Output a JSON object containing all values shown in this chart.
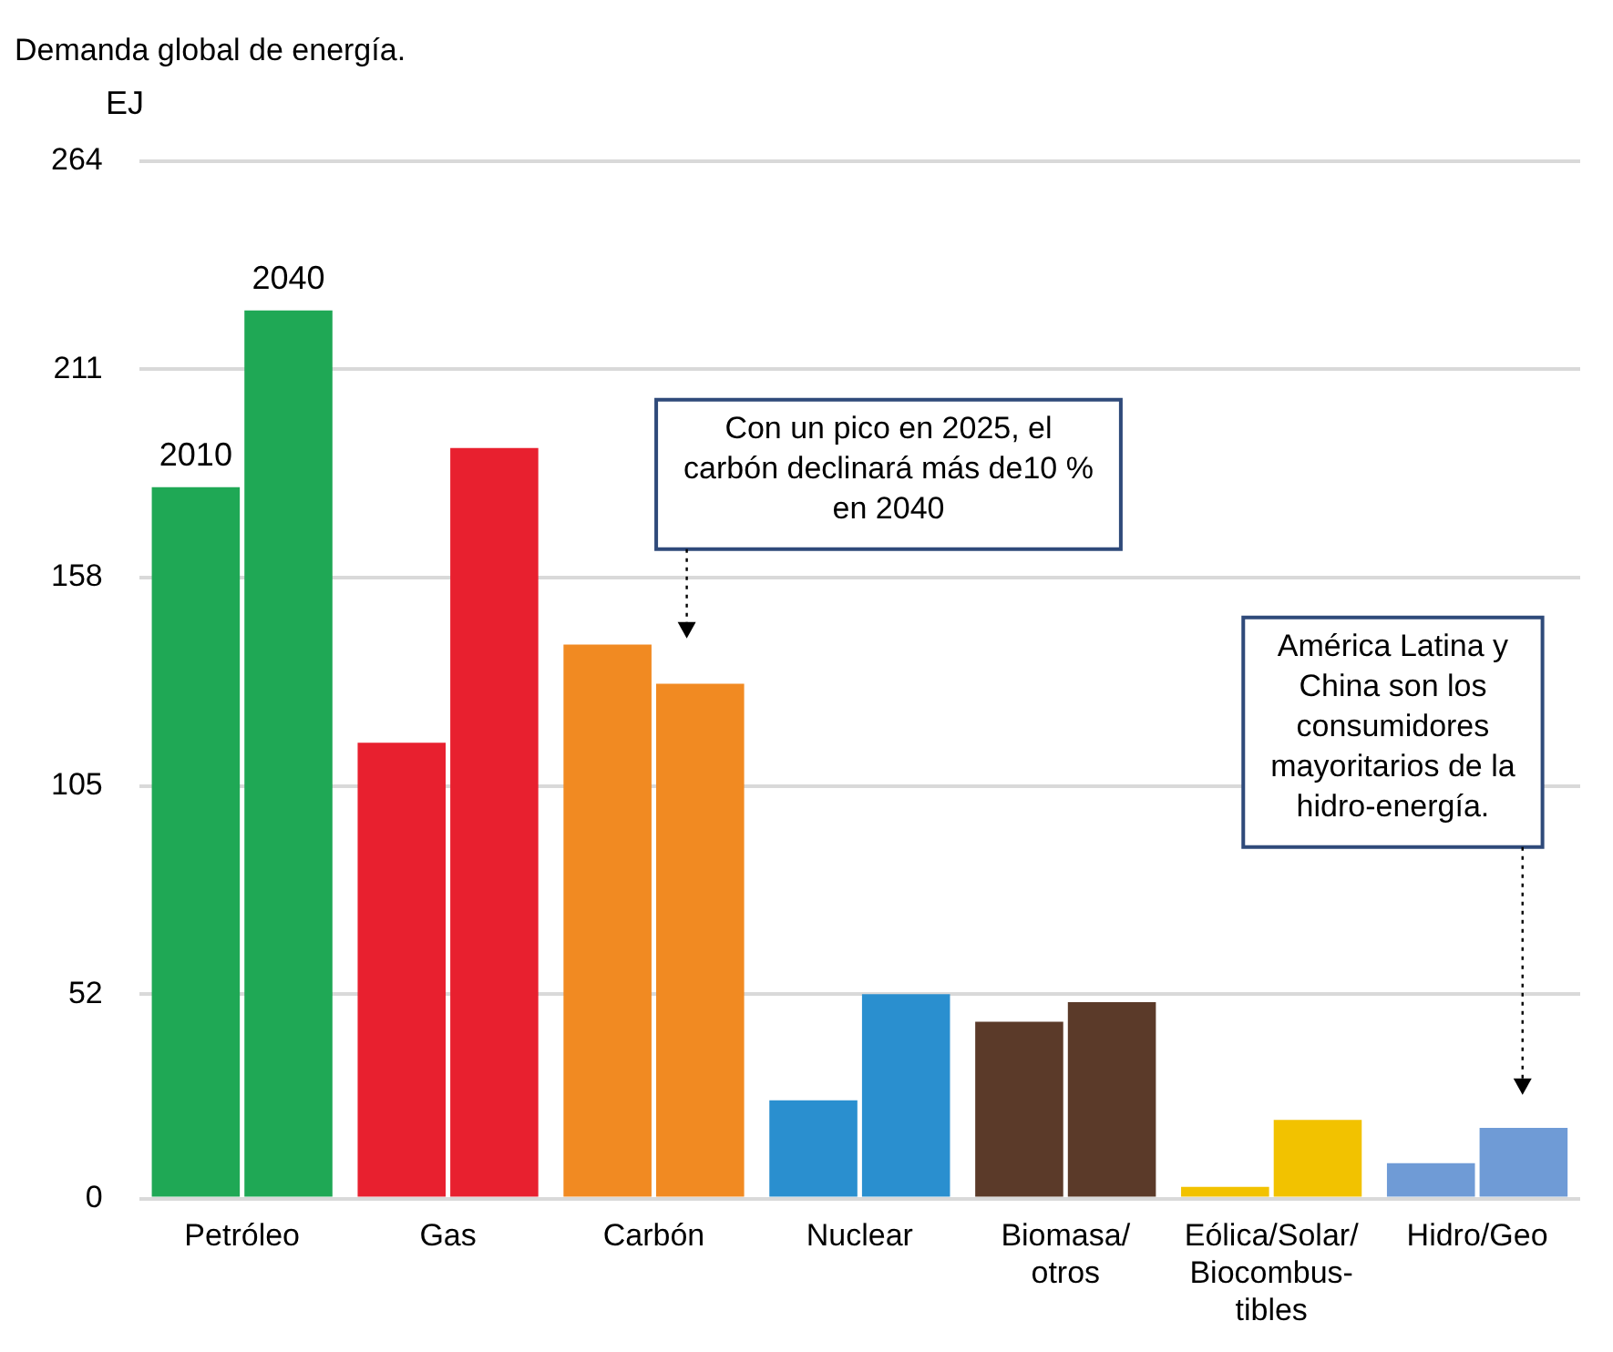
{
  "chart_data": {
    "type": "bar",
    "title": "Demanda global de energía.",
    "ylabel": "EJ",
    "categories": [
      "Petróleo",
      "Gas",
      "Carbón",
      "Nuclear",
      "Biomasa/\notros",
      "Eólica/Solar/\nBiocombus-\ntibles",
      "Hidro/Geo"
    ],
    "series": [
      {
        "name": "2010",
        "colors": [
          "#1fa855",
          "#e8202f",
          "#f18a22",
          "#2a8fcf",
          "#5b3a29",
          "#f2c200",
          "#6f9bd6"
        ],
        "values": [
          181,
          116,
          141,
          25,
          45,
          3,
          9
        ]
      },
      {
        "name": "2040",
        "colors": [
          "#1fa855",
          "#e8202f",
          "#f18a22",
          "#2a8fcf",
          "#5b3a29",
          "#f2c200",
          "#6f9bd6"
        ],
        "values": [
          226,
          191,
          131,
          52,
          50,
          20,
          18
        ]
      }
    ],
    "ylim": [
      0,
      264
    ],
    "yticks": [
      0,
      52,
      105,
      158,
      211,
      264
    ],
    "grid": "y",
    "legend": false,
    "annotations": [
      "Con un pico en 2025, el\ncarbón declinará más de10 %\nen 2040",
      "América Latina y\nChina son los\nconsumidores\nmayoritarios de la\nhidro-energía."
    ]
  }
}
